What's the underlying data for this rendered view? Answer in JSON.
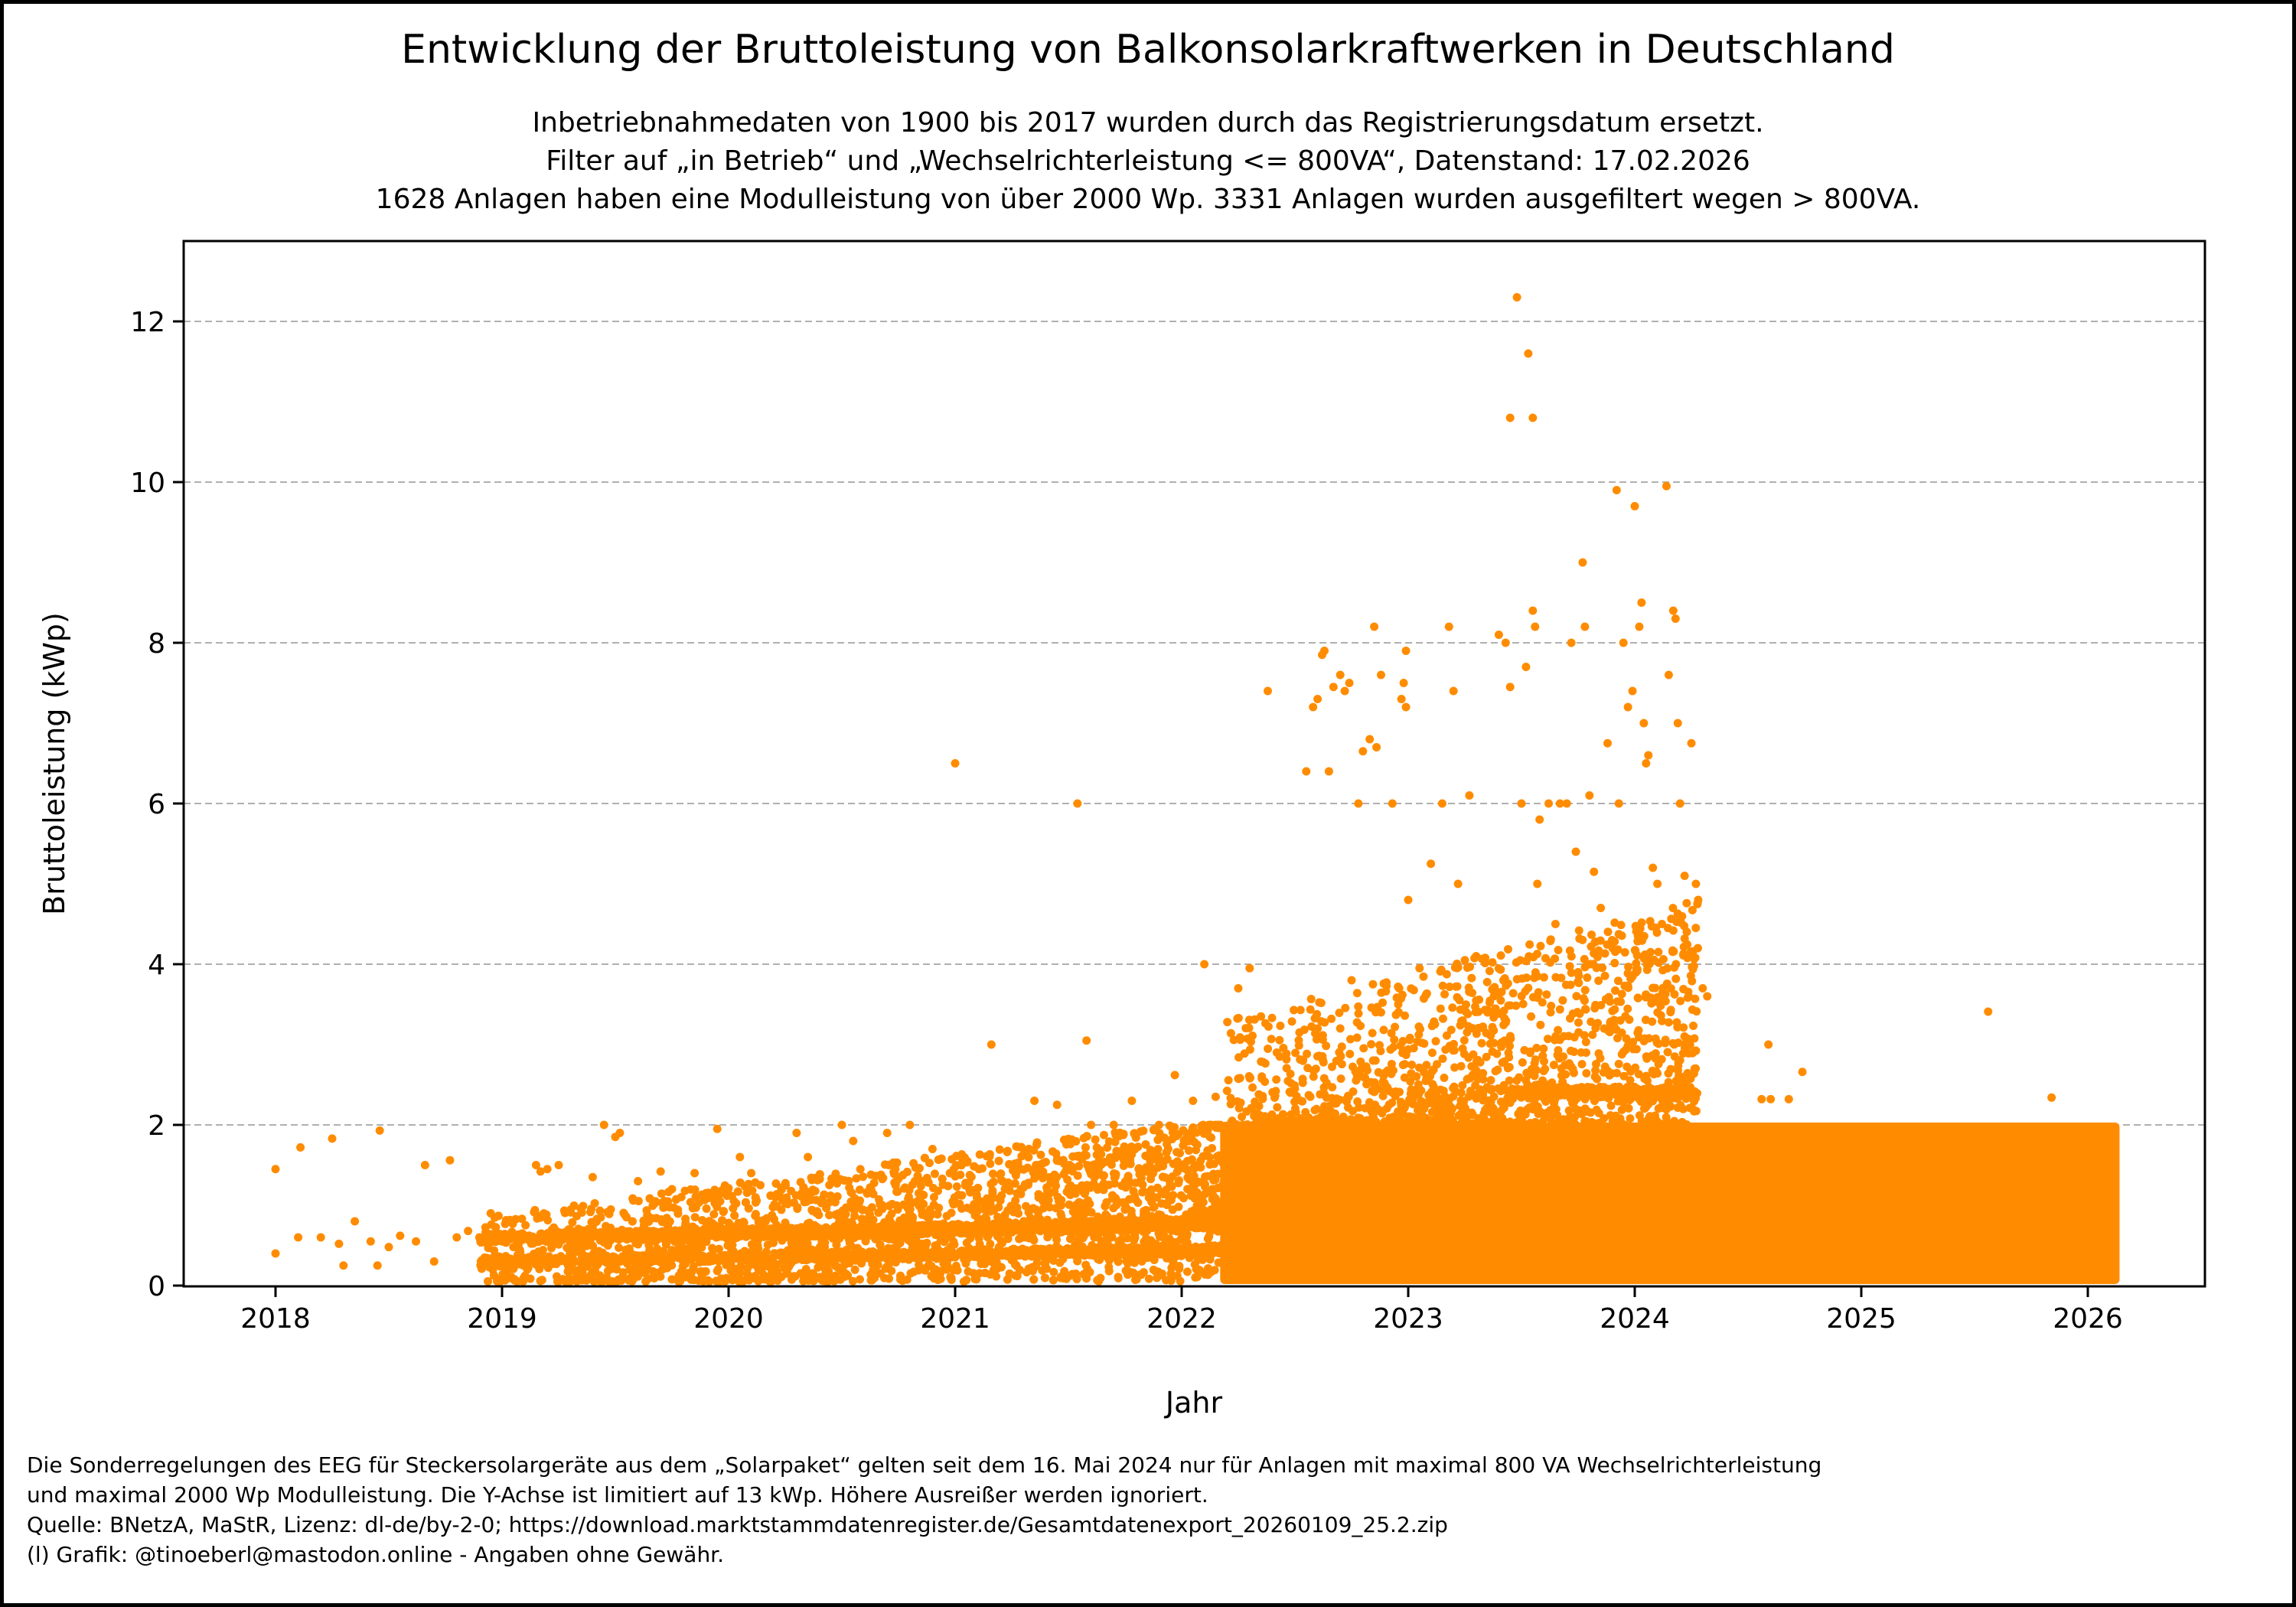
{
  "chart_data": {
    "type": "scatter",
    "title": "Entwicklung der Bruttoleistung von Balkonsolarkraftwerken in Deutschland",
    "subtitle": [
      "Inbetriebnahmedaten von 1900 bis 2017 wurden durch das Registrierungsdatum ersetzt.",
      "Filter auf „in Betrieb“ und „Wechselrichterleistung <= 800VA“, Datenstand: 17.02.2026",
      "1628 Anlagen haben eine Modulleistung von über 2000 Wp. 3331 Anlagen wurden ausgefiltert wegen > 800VA."
    ],
    "xlabel": "Jahr",
    "ylabel": "Bruttoleistung (kWp)",
    "xlim": [
      2017.6,
      2026.5
    ],
    "ylim": [
      0,
      13
    ],
    "xticks": [
      2018,
      2019,
      2020,
      2021,
      2022,
      2023,
      2024,
      2025,
      2026
    ],
    "xtick_labels": [
      "2018",
      "2019",
      "2020",
      "2021",
      "2022",
      "2023",
      "2024",
      "2025",
      "2026"
    ],
    "yticks": [
      0,
      2,
      4,
      6,
      8,
      10,
      12
    ],
    "ytick_labels": [
      "0",
      "2",
      "4",
      "6",
      "8",
      "10",
      "12"
    ],
    "grid": "y-dashed",
    "marker_color": "#ff8c00",
    "grid_color": "#b0b0b0",
    "dense_region": {
      "x": [
        2022.17,
        2026.14
      ],
      "y": [
        0,
        2.03
      ],
      "note_x_start_partial": 2018.0
    },
    "points": [
      [
        2018.0,
        1.45
      ],
      [
        2018.0,
        0.4
      ],
      [
        2018.11,
        1.72
      ],
      [
        2018.25,
        1.83
      ],
      [
        2018.46,
        1.93
      ],
      [
        2018.66,
        1.5
      ],
      [
        2018.77,
        1.56
      ],
      [
        2018.1,
        0.6
      ],
      [
        2018.2,
        0.6
      ],
      [
        2018.28,
        0.52
      ],
      [
        2018.35,
        0.8
      ],
      [
        2018.42,
        0.55
      ],
      [
        2018.5,
        0.48
      ],
      [
        2018.45,
        0.25
      ],
      [
        2018.55,
        0.62
      ],
      [
        2018.62,
        0.55
      ],
      [
        2018.7,
        0.3
      ],
      [
        2018.8,
        0.6
      ],
      [
        2018.9,
        0.6
      ],
      [
        2018.93,
        0.25
      ],
      [
        2018.3,
        0.25
      ],
      [
        2018.85,
        0.68
      ],
      [
        2018.95,
        0.9
      ],
      [
        2019.0,
        0.55
      ],
      [
        2019.05,
        0.48
      ],
      [
        2019.08,
        0.42
      ],
      [
        2019.15,
        1.5
      ],
      [
        2019.2,
        1.45
      ],
      [
        2019.25,
        1.5
      ],
      [
        2019.17,
        1.42
      ],
      [
        2019.45,
        2.0
      ],
      [
        2019.5,
        1.85
      ],
      [
        2019.52,
        1.9
      ],
      [
        2019.4,
        1.35
      ],
      [
        2019.6,
        1.3
      ],
      [
        2019.7,
        1.42
      ],
      [
        2019.75,
        1.2
      ],
      [
        2019.85,
        1.4
      ],
      [
        2019.9,
        1.15
      ],
      [
        2019.95,
        1.95
      ],
      [
        2020.05,
        1.6
      ],
      [
        2020.1,
        1.4
      ],
      [
        2020.3,
        1.9
      ],
      [
        2020.35,
        1.6
      ],
      [
        2020.5,
        2.0
      ],
      [
        2020.55,
        1.8
      ],
      [
        2020.7,
        1.9
      ],
      [
        2020.8,
        2.0
      ],
      [
        2020.9,
        1.7
      ],
      [
        2021.0,
        6.5
      ],
      [
        2021.16,
        3.0
      ],
      [
        2021.54,
        6.0
      ],
      [
        2021.58,
        3.05
      ],
      [
        2021.35,
        2.3
      ],
      [
        2021.45,
        2.25
      ],
      [
        2021.6,
        2.0
      ],
      [
        2021.7,
        2.0
      ],
      [
        2021.78,
        2.3
      ],
      [
        2021.9,
        2.0
      ],
      [
        2021.97,
        2.62
      ],
      [
        2022.05,
        2.3
      ],
      [
        2022.1,
        4.0
      ],
      [
        2022.15,
        2.35
      ],
      [
        2022.25,
        3.7
      ],
      [
        2022.3,
        3.95
      ],
      [
        2022.35,
        3.35
      ],
      [
        2022.38,
        7.4
      ],
      [
        2022.42,
        2.9
      ],
      [
        2022.48,
        2.4
      ],
      [
        2022.52,
        3.15
      ],
      [
        2022.55,
        6.4
      ],
      [
        2022.58,
        7.2
      ],
      [
        2022.6,
        7.3
      ],
      [
        2022.62,
        7.85
      ],
      [
        2022.63,
        7.9
      ],
      [
        2022.65,
        6.4
      ],
      [
        2022.67,
        7.45
      ],
      [
        2022.7,
        7.6
      ],
      [
        2022.72,
        7.4
      ],
      [
        2022.74,
        7.5
      ],
      [
        2022.75,
        3.8
      ],
      [
        2022.78,
        6.0
      ],
      [
        2022.8,
        6.65
      ],
      [
        2022.83,
        6.8
      ],
      [
        2022.85,
        8.2
      ],
      [
        2022.86,
        6.7
      ],
      [
        2022.88,
        7.6
      ],
      [
        2022.93,
        6.0
      ],
      [
        2022.97,
        7.3
      ],
      [
        2022.98,
        7.5
      ],
      [
        2022.99,
        7.9
      ],
      [
        2022.99,
        7.2
      ],
      [
        2022.96,
        3.7
      ],
      [
        2022.7,
        3.2
      ],
      [
        2022.88,
        3.4
      ],
      [
        2022.6,
        3.2
      ],
      [
        2023.0,
        4.8
      ],
      [
        2023.05,
        3.95
      ],
      [
        2023.1,
        5.25
      ],
      [
        2023.15,
        6.0
      ],
      [
        2023.18,
        8.2
      ],
      [
        2023.2,
        7.4
      ],
      [
        2023.22,
        5.0
      ],
      [
        2023.25,
        4.05
      ],
      [
        2023.27,
        6.1
      ],
      [
        2023.3,
        4.1
      ],
      [
        2023.35,
        3.4
      ],
      [
        2023.4,
        8.1
      ],
      [
        2023.43,
        8.0
      ],
      [
        2023.45,
        7.45
      ],
      [
        2023.42,
        3.8
      ],
      [
        2023.5,
        6.0
      ],
      [
        2023.48,
        12.3
      ],
      [
        2023.53,
        11.6
      ],
      [
        2023.45,
        10.8
      ],
      [
        2023.55,
        10.8
      ],
      [
        2023.52,
        7.7
      ],
      [
        2023.55,
        8.4
      ],
      [
        2023.56,
        8.2
      ],
      [
        2023.57,
        5.0
      ],
      [
        2023.58,
        5.8
      ],
      [
        2023.62,
        6.0
      ],
      [
        2023.65,
        4.5
      ],
      [
        2023.67,
        6.0
      ],
      [
        2023.7,
        6.0
      ],
      [
        2023.72,
        8.0
      ],
      [
        2023.74,
        5.4
      ],
      [
        2023.75,
        3.9
      ],
      [
        2023.77,
        9.0
      ],
      [
        2023.78,
        8.2
      ],
      [
        2023.8,
        6.1
      ],
      [
        2023.82,
        5.15
      ],
      [
        2023.85,
        4.7
      ],
      [
        2023.88,
        6.75
      ],
      [
        2023.9,
        4.3
      ],
      [
        2023.92,
        9.9
      ],
      [
        2023.93,
        6.0
      ],
      [
        2023.95,
        8.0
      ],
      [
        2023.97,
        7.2
      ],
      [
        2023.99,
        7.4
      ],
      [
        2024.0,
        9.7
      ],
      [
        2024.02,
        8.2
      ],
      [
        2024.03,
        8.5
      ],
      [
        2024.04,
        7.0
      ],
      [
        2024.05,
        6.5
      ],
      [
        2024.06,
        6.6
      ],
      [
        2024.08,
        5.2
      ],
      [
        2024.1,
        5.0
      ],
      [
        2024.12,
        4.5
      ],
      [
        2024.14,
        9.95
      ],
      [
        2024.15,
        7.6
      ],
      [
        2024.17,
        8.4
      ],
      [
        2024.18,
        8.3
      ],
      [
        2024.19,
        7.0
      ],
      [
        2024.2,
        6.0
      ],
      [
        2024.22,
        5.1
      ],
      [
        2024.25,
        6.75
      ],
      [
        2024.27,
        5.0
      ],
      [
        2024.28,
        4.8
      ],
      [
        2024.3,
        3.7
      ],
      [
        2024.32,
        3.6
      ],
      [
        2024.59,
        3.0
      ],
      [
        2024.74,
        2.66
      ],
      [
        2024.56,
        2.32
      ],
      [
        2024.6,
        2.32
      ],
      [
        2024.68,
        2.32
      ],
      [
        2025.56,
        3.41
      ],
      [
        2025.84,
        2.34
      ]
    ]
  },
  "footer": [
    "Die Sonderregelungen des EEG für Steckersolargeräte aus dem „Solarpaket“ gelten seit dem 16. Mai 2024 nur für Anlagen mit maximal 800 VA Wechselrichterleistung",
    "und maximal 2000 Wp Modulleistung. Die Y-Achse ist limitiert auf 13 kWp. Höhere Ausreißer werden ignoriert.",
    "Quelle: BNetzA, MaStR, Lizenz: dl-de/by-2-0; https://download.marktstammdatenregister.de/Gesamtdatenexport_20260109_25.2.zip",
    "(l) Grafik: @tinoeberl@mastodon.online - Angaben ohne Gewähr."
  ]
}
